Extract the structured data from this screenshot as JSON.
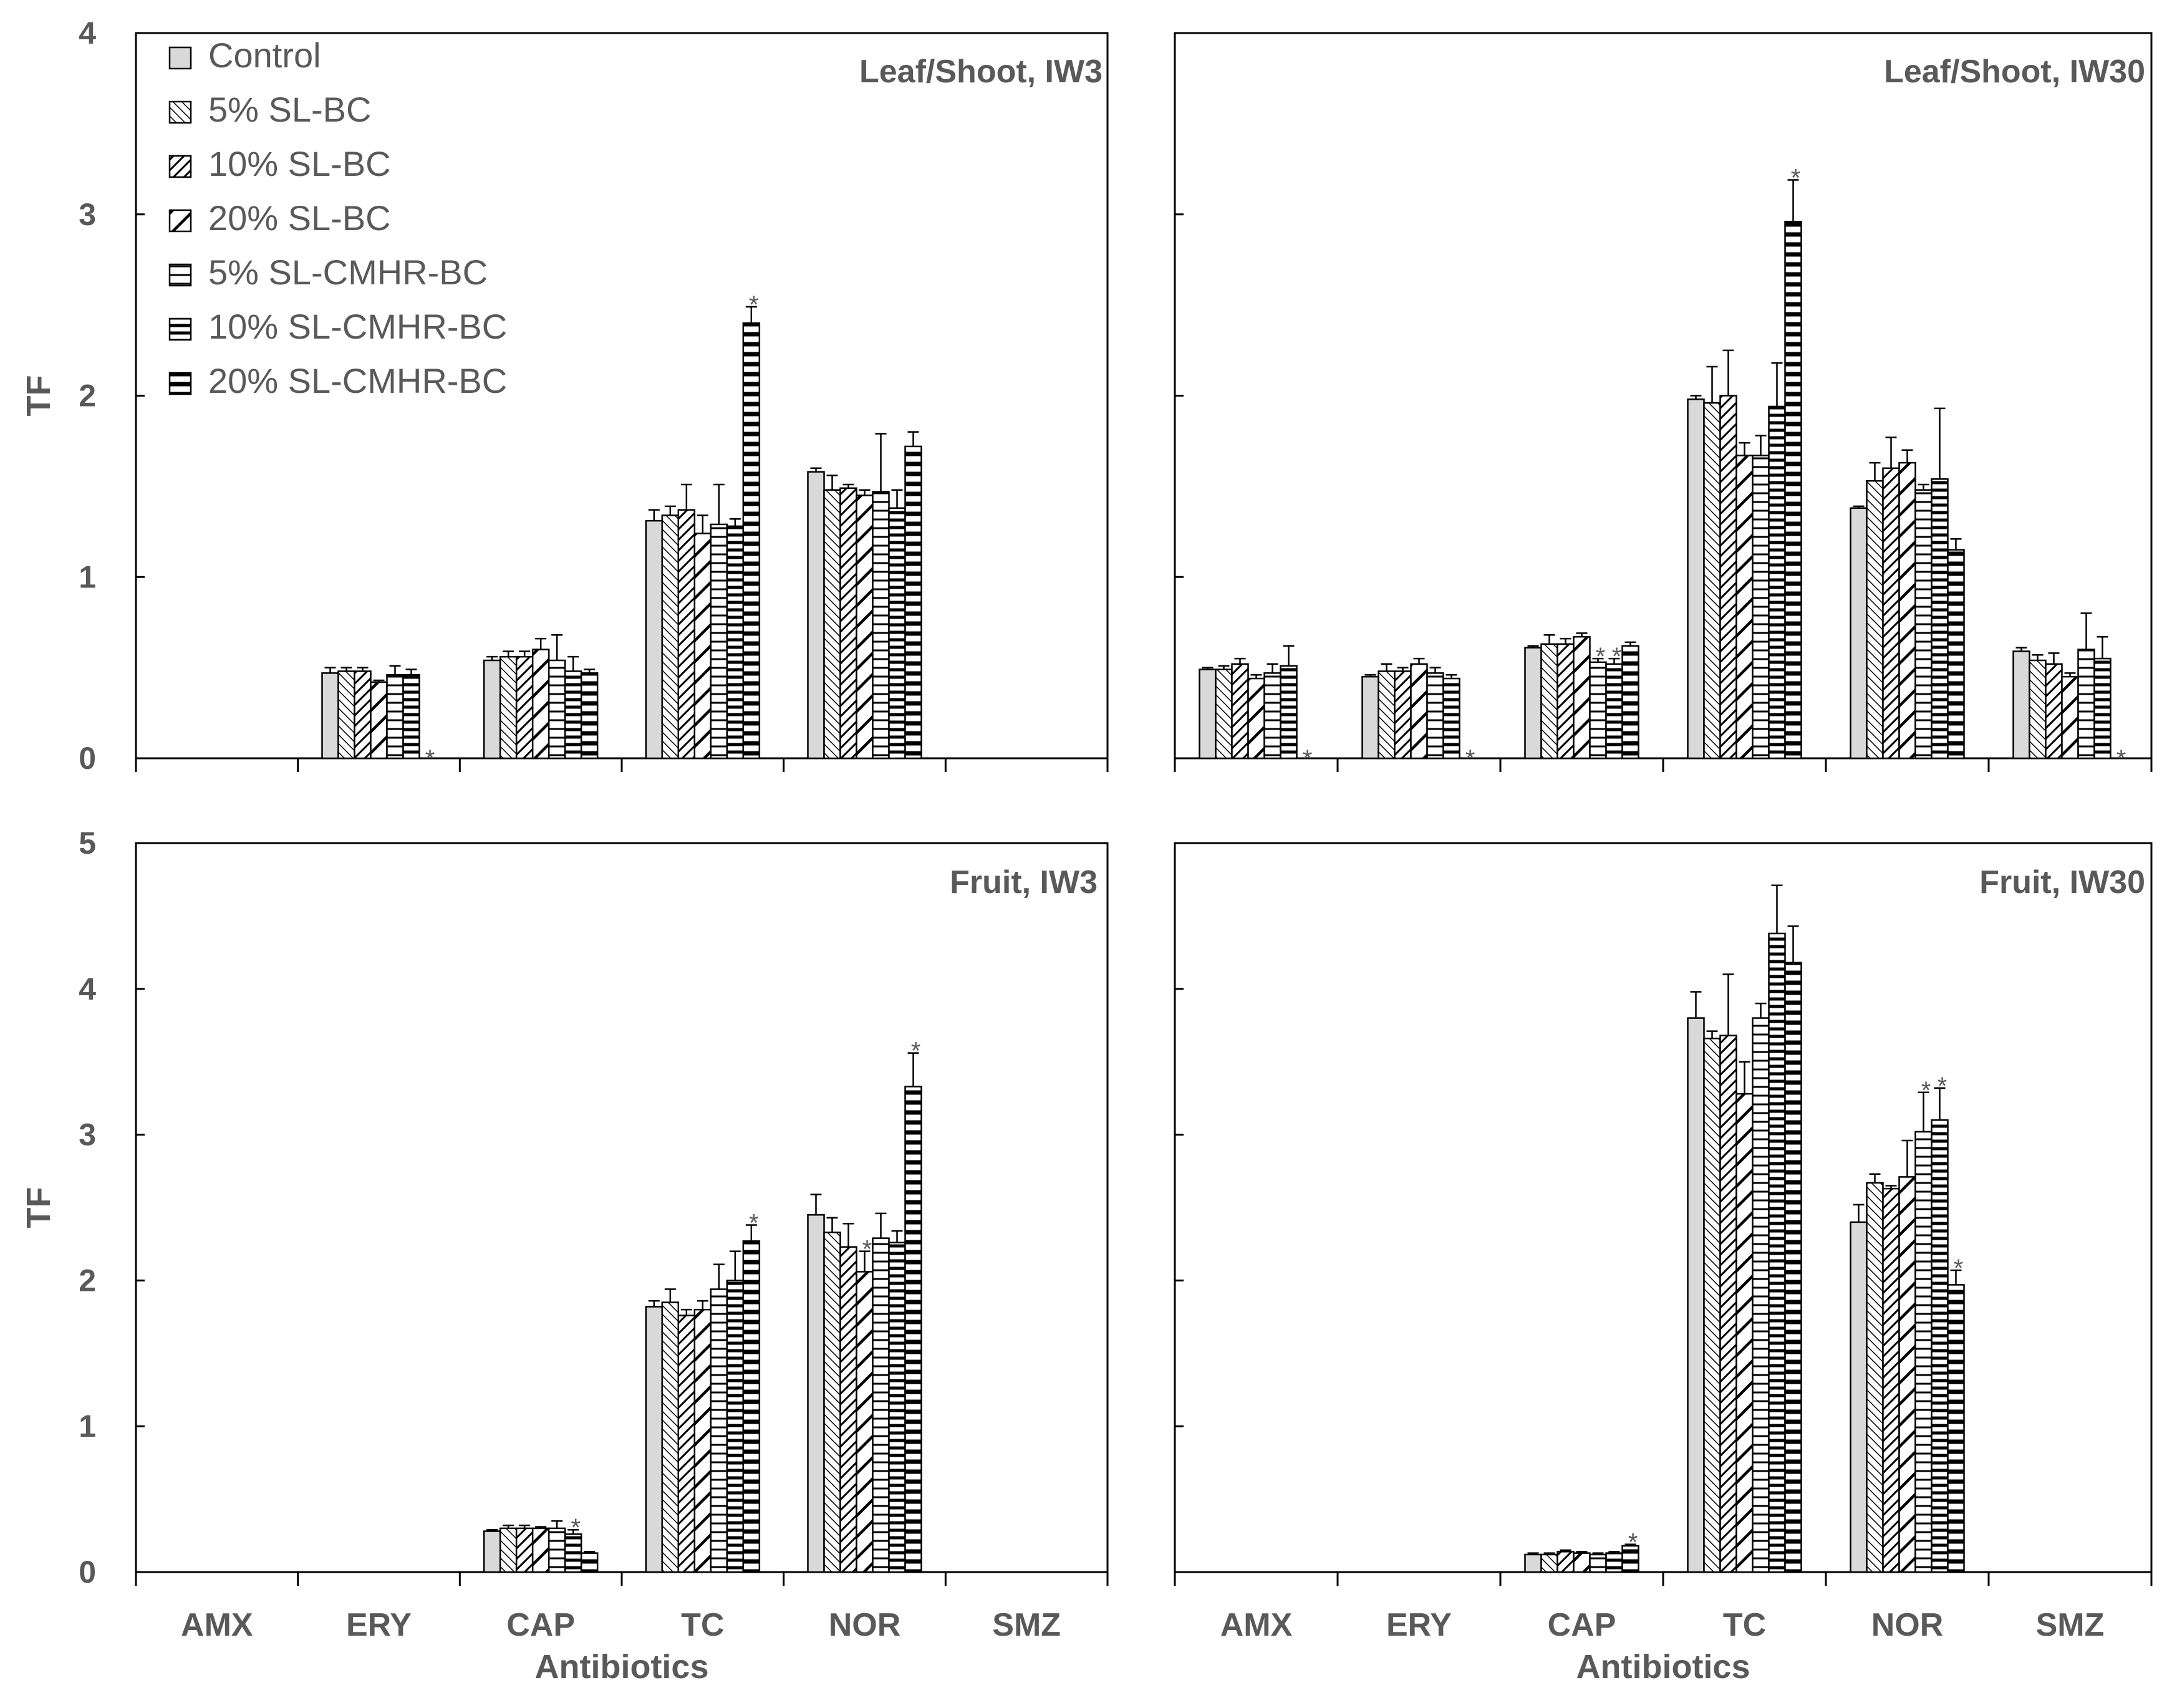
{
  "colors": {
    "axis": "#000000",
    "text": "#595959",
    "control_fill": "#d9d9d9",
    "pattern_fill": "#ffffff"
  },
  "legend": {
    "placement": "top-left of top-left panel",
    "items": [
      {
        "name": "Control",
        "pattern": "solid-gray"
      },
      {
        "name": "5% SL-BC",
        "pattern": "diag-fine"
      },
      {
        "name": "10% SL-BC",
        "pattern": "diag-dense"
      },
      {
        "name": "20% SL-BC",
        "pattern": "diag-wide"
      },
      {
        "name": "5% SL-CMHR-BC",
        "pattern": "horiz-fine"
      },
      {
        "name": "10% SL-CMHR-BC",
        "pattern": "horiz-medium"
      },
      {
        "name": "20% SL-CMHR-BC",
        "pattern": "horiz-thick"
      }
    ]
  },
  "chart_data": [
    {
      "type": "bar",
      "title": "Leaf/Shoot, IW3",
      "xlabel": "",
      "ylabel": "TF",
      "ylim": [
        0,
        4
      ],
      "yticks": [
        "0",
        "1",
        "2",
        "3",
        "4"
      ],
      "categories": [
        "AMX",
        "ERY",
        "CAP",
        "TC",
        "NOR",
        "SMZ"
      ],
      "show_xlabels": false,
      "series": [
        {
          "name": "Control",
          "values": [
            null,
            0.47,
            0.54,
            1.31,
            1.58,
            null
          ],
          "errors": [
            null,
            0.03,
            0.02,
            0.06,
            0.02,
            null
          ]
        },
        {
          "name": "5% SL-BC",
          "values": [
            null,
            0.48,
            0.56,
            1.34,
            1.48,
            null
          ],
          "errors": [
            null,
            0.02,
            0.03,
            0.05,
            0.08,
            null
          ]
        },
        {
          "name": "10% SL-BC",
          "values": [
            null,
            0.48,
            0.56,
            1.37,
            1.49,
            null
          ],
          "errors": [
            null,
            0.02,
            0.03,
            0.14,
            0.02,
            null
          ]
        },
        {
          "name": "20% SL-BC",
          "values": [
            null,
            0.42,
            0.6,
            1.24,
            1.45,
            null
          ],
          "errors": [
            null,
            0.01,
            0.06,
            0.1,
            0.03,
            null
          ]
        },
        {
          "name": "5% SL-CMHR-BC",
          "values": [
            null,
            0.46,
            0.54,
            1.29,
            1.47,
            null
          ],
          "errors": [
            null,
            0.05,
            0.14,
            0.22,
            0.32,
            null
          ]
        },
        {
          "name": "10% SL-CMHR-BC",
          "values": [
            null,
            0.46,
            0.48,
            1.28,
            1.38,
            null
          ],
          "errors": [
            null,
            0.03,
            0.08,
            0.04,
            0.1,
            null
          ]
        },
        {
          "name": "20% SL-CMHR-BC",
          "values": [
            null,
            0.0,
            0.47,
            2.4,
            1.72,
            null
          ],
          "errors": [
            null,
            null,
            0.02,
            0.09,
            0.08,
            null
          ]
        }
      ],
      "significance": [
        {
          "category": "ERY",
          "series": "20% SL-CMHR-BC",
          "label": "*"
        },
        {
          "category": "TC",
          "series": "20% SL-CMHR-BC",
          "label": "*"
        }
      ]
    },
    {
      "type": "bar",
      "title": "Leaf/Shoot, IW30",
      "xlabel": "",
      "ylabel": "",
      "ylim": [
        0,
        4
      ],
      "categories": [
        "AMX",
        "ERY",
        "CAP",
        "TC",
        "NOR",
        "SMZ"
      ],
      "show_xlabels": false,
      "series": [
        {
          "name": "Control",
          "values": [
            0.49,
            0.45,
            0.61,
            1.98,
            1.38,
            0.59
          ],
          "errors": [
            0.01,
            0.01,
            0.01,
            0.02,
            0.01,
            0.02
          ]
        },
        {
          "name": "5% SL-BC",
          "values": [
            0.49,
            0.48,
            0.63,
            1.96,
            1.53,
            0.54
          ],
          "errors": [
            0.02,
            0.04,
            0.05,
            0.2,
            0.1,
            0.03
          ]
        },
        {
          "name": "10% SL-BC",
          "values": [
            0.52,
            0.48,
            0.63,
            2.0,
            1.6,
            0.52
          ],
          "errors": [
            0.03,
            0.02,
            0.03,
            0.25,
            0.17,
            0.06
          ]
        },
        {
          "name": "20% SL-BC",
          "values": [
            0.44,
            0.52,
            0.67,
            1.67,
            1.63,
            0.45
          ],
          "errors": [
            0.02,
            0.03,
            0.02,
            0.07,
            0.07,
            0.02
          ]
        },
        {
          "name": "5% SL-CMHR-BC",
          "values": [
            0.47,
            0.47,
            0.53,
            1.67,
            1.48,
            0.6
          ],
          "errors": [
            0.05,
            0.03,
            0.02,
            0.11,
            0.03,
            0.2
          ]
        },
        {
          "name": "10% SL-CMHR-BC",
          "values": [
            0.51,
            0.44,
            0.52,
            1.94,
            1.54,
            0.55
          ],
          "errors": [
            0.11,
            0.02,
            0.03,
            0.24,
            0.39,
            0.12
          ]
        },
        {
          "name": "20% SL-CMHR-BC",
          "values": [
            0.0,
            0.0,
            0.62,
            2.96,
            1.15,
            0.0
          ],
          "errors": [
            null,
            null,
            0.02,
            0.23,
            0.06,
            null
          ]
        }
      ],
      "significance": [
        {
          "category": "AMX",
          "series": "20% SL-CMHR-BC",
          "label": "*"
        },
        {
          "category": "ERY",
          "series": "20% SL-CMHR-BC",
          "label": "*"
        },
        {
          "category": "CAP",
          "series": "5% SL-CMHR-BC",
          "label": "*"
        },
        {
          "category": "CAP",
          "series": "10% SL-CMHR-BC",
          "label": "*"
        },
        {
          "category": "TC",
          "series": "20% SL-CMHR-BC",
          "label": "*"
        },
        {
          "category": "SMZ",
          "series": "20% SL-CMHR-BC",
          "label": "*"
        }
      ]
    },
    {
      "type": "bar",
      "title": "Fruit, IW3",
      "xlabel": "Antibiotics",
      "ylabel": "TF",
      "ylim": [
        0,
        5
      ],
      "yticks": [
        "0",
        "1",
        "2",
        "3",
        "4",
        "5"
      ],
      "categories": [
        "AMX",
        "ERY",
        "CAP",
        "TC",
        "NOR",
        "SMZ"
      ],
      "show_xlabels": true,
      "series": [
        {
          "name": "Control",
          "values": [
            null,
            null,
            0.28,
            1.82,
            2.45,
            null
          ],
          "errors": [
            null,
            null,
            0.01,
            0.04,
            0.14,
            null
          ]
        },
        {
          "name": "5% SL-BC",
          "values": [
            null,
            null,
            0.3,
            1.85,
            2.33,
            null
          ],
          "errors": [
            null,
            null,
            0.02,
            0.09,
            0.1,
            null
          ]
        },
        {
          "name": "10% SL-BC",
          "values": [
            null,
            null,
            0.3,
            1.76,
            2.23,
            null
          ],
          "errors": [
            null,
            null,
            0.02,
            0.04,
            0.16,
            null
          ]
        },
        {
          "name": "20% SL-BC",
          "values": [
            null,
            null,
            0.3,
            1.8,
            2.06,
            null
          ],
          "errors": [
            null,
            null,
            0.01,
            0.06,
            0.14,
            null
          ]
        },
        {
          "name": "5% SL-CMHR-BC",
          "values": [
            null,
            null,
            0.3,
            1.94,
            2.29,
            null
          ],
          "errors": [
            null,
            null,
            0.05,
            0.17,
            0.17,
            null
          ]
        },
        {
          "name": "10% SL-CMHR-BC",
          "values": [
            null,
            null,
            0.26,
            2.0,
            2.26,
            null
          ],
          "errors": [
            null,
            null,
            0.03,
            0.2,
            0.08,
            null
          ]
        },
        {
          "name": "20% SL-CMHR-BC",
          "values": [
            null,
            null,
            0.13,
            2.27,
            3.33,
            null
          ],
          "errors": [
            null,
            null,
            0.01,
            0.11,
            0.23,
            null
          ]
        }
      ],
      "significance": [
        {
          "category": "CAP",
          "series": "10% SL-CMHR-BC",
          "label": "*"
        },
        {
          "category": "TC",
          "series": "20% SL-CMHR-BC",
          "label": "*"
        },
        {
          "category": "NOR",
          "series": "20% SL-BC",
          "label": "*"
        },
        {
          "category": "NOR",
          "series": "20% SL-CMHR-BC",
          "label": "*"
        }
      ]
    },
    {
      "type": "bar",
      "title": "Fruit, IW30",
      "xlabel": "Antibiotics",
      "ylabel": "",
      "ylim": [
        0,
        5
      ],
      "categories": [
        "AMX",
        "ERY",
        "CAP",
        "TC",
        "NOR",
        "SMZ"
      ],
      "show_xlabels": true,
      "series": [
        {
          "name": "Control",
          "values": [
            null,
            null,
            0.12,
            3.8,
            2.4,
            null
          ],
          "errors": [
            null,
            null,
            0.01,
            0.18,
            0.12,
            null
          ]
        },
        {
          "name": "5% SL-BC",
          "values": [
            null,
            null,
            0.12,
            3.66,
            2.67,
            null
          ],
          "errors": [
            null,
            null,
            0.01,
            0.05,
            0.06,
            null
          ]
        },
        {
          "name": "10% SL-BC",
          "values": [
            null,
            null,
            0.14,
            3.68,
            2.63,
            null
          ],
          "errors": [
            null,
            null,
            0.01,
            0.42,
            0.02,
            null
          ]
        },
        {
          "name": "20% SL-BC",
          "values": [
            null,
            null,
            0.13,
            3.28,
            2.71,
            null
          ],
          "errors": [
            null,
            null,
            0.01,
            0.22,
            0.25,
            null
          ]
        },
        {
          "name": "5% SL-CMHR-BC",
          "values": [
            null,
            null,
            0.12,
            3.8,
            3.02,
            null
          ],
          "errors": [
            null,
            null,
            0.01,
            0.1,
            0.27,
            null
          ]
        },
        {
          "name": "10% SL-CMHR-BC",
          "values": [
            null,
            null,
            0.13,
            4.38,
            3.1,
            null
          ],
          "errors": [
            null,
            null,
            0.01,
            0.33,
            0.22,
            null
          ]
        },
        {
          "name": "20% SL-CMHR-BC",
          "values": [
            null,
            null,
            0.18,
            4.18,
            1.97,
            null
          ],
          "errors": [
            null,
            null,
            0.01,
            0.25,
            0.1,
            null
          ]
        }
      ],
      "significance": [
        {
          "category": "CAP",
          "series": "20% SL-CMHR-BC",
          "label": "*"
        },
        {
          "category": "NOR",
          "series": "5% SL-CMHR-BC",
          "label": "*"
        },
        {
          "category": "NOR",
          "series": "10% SL-CMHR-BC",
          "label": "*"
        },
        {
          "category": "NOR",
          "series": "20% SL-CMHR-BC",
          "label": "*"
        }
      ]
    }
  ]
}
